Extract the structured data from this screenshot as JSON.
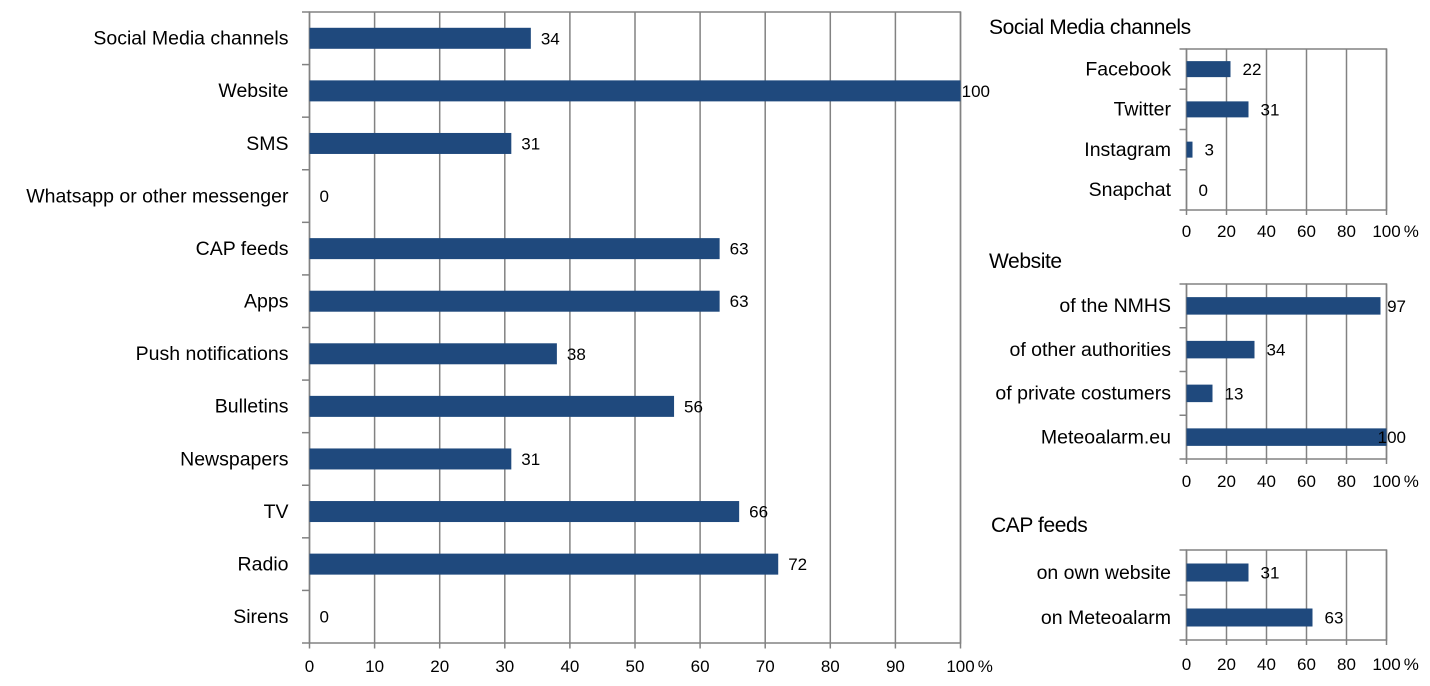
{
  "page": {
    "background": "#ffffff"
  },
  "colors": {
    "bar": "#1f497d",
    "grid": "#828282",
    "axis": "#828282",
    "text": "#000000"
  },
  "chart_data": [
    {
      "id": "warning-dissemination-channels",
      "type": "bar",
      "orientation": "horizontal",
      "title": "",
      "categories": [
        "Social Media channels",
        "Website",
        "SMS",
        "Whatsapp or other messenger",
        "CAP feeds",
        "Apps",
        "Push notifications",
        "Bulletins",
        "Newspapers",
        "TV",
        "Radio",
        "Sirens"
      ],
      "values": [
        34,
        100,
        31,
        0,
        63,
        63,
        38,
        56,
        31,
        66,
        72,
        0
      ],
      "xlabel": "",
      "ylabel": "",
      "xlim": [
        0,
        100
      ],
      "xticks": [
        0,
        10,
        20,
        30,
        40,
        50,
        60,
        70,
        80,
        90,
        100
      ],
      "xtick_suffix": "%",
      "grid": true,
      "data_labels": true,
      "legend": false
    },
    {
      "id": "social-media-channels",
      "type": "bar",
      "orientation": "horizontal",
      "title": "Social Media channels",
      "categories": [
        "Facebook",
        "Twitter",
        "Instagram",
        "Snapchat"
      ],
      "values": [
        22,
        31,
        3,
        0
      ],
      "xlabel": "",
      "ylabel": "",
      "xlim": [
        0,
        100
      ],
      "xticks": [
        0,
        20,
        40,
        60,
        80,
        100
      ],
      "xtick_suffix": "%",
      "grid": true,
      "data_labels": true,
      "legend": false
    },
    {
      "id": "website",
      "type": "bar",
      "orientation": "horizontal",
      "title": "Website",
      "categories": [
        "of the NMHS",
        "of other authorities",
        "of private costumers",
        "Meteoalarm.eu"
      ],
      "values": [
        97,
        34,
        13,
        100
      ],
      "xlabel": "",
      "ylabel": "",
      "xlim": [
        0,
        100
      ],
      "xticks": [
        0,
        20,
        40,
        60,
        80,
        100
      ],
      "xtick_suffix": "%",
      "grid": true,
      "data_labels": true,
      "legend": false
    },
    {
      "id": "cap-feeds",
      "type": "bar",
      "orientation": "horizontal",
      "title": "CAP feeds",
      "categories": [
        "on own website",
        "on Meteoalarm"
      ],
      "values": [
        31,
        63
      ],
      "xlabel": "",
      "ylabel": "",
      "xlim": [
        0,
        100
      ],
      "xticks": [
        0,
        20,
        40,
        60,
        80,
        100
      ],
      "xtick_suffix": "%",
      "grid": true,
      "data_labels": true,
      "legend": false
    }
  ]
}
